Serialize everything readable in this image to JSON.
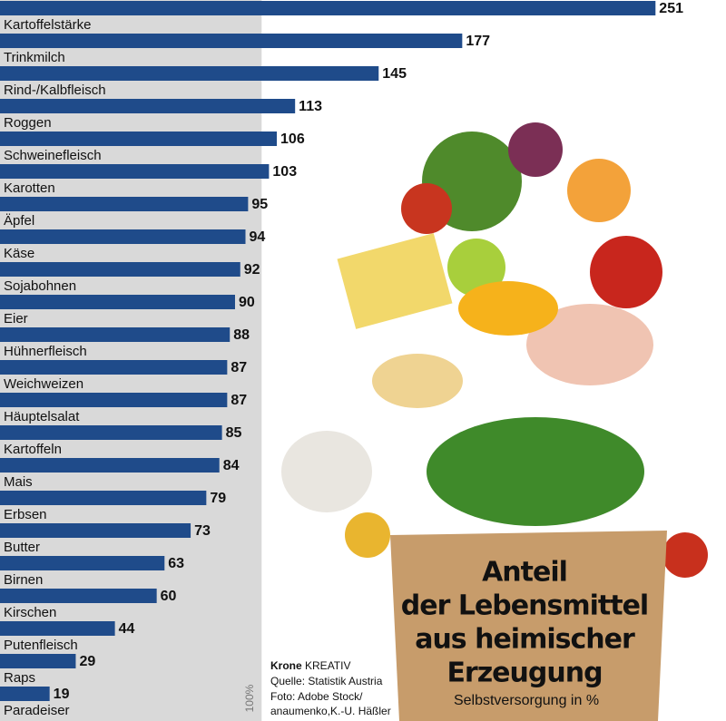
{
  "chart_data": {
    "type": "hbar",
    "title": [
      "Anteil",
      "der Lebensmittel",
      "aus heimischer",
      "Erzeugung"
    ],
    "subtitle": "Selbstversorgung in %",
    "categories": [
      "Kartoffelstärke",
      "Trinkmilch",
      "Rind-/Kalbfleisch",
      "Roggen",
      "Schweinefleisch",
      "Karotten",
      "Äpfel",
      "Käse",
      "Sojabohnen",
      "Eier",
      "Hühnerfleisch",
      "Weichweizen",
      "Häuptelsalat",
      "Kartoffeln",
      "Mais",
      "Erbsen",
      "Butter",
      "Birnen",
      "Kirschen",
      "Putenfleisch",
      "Raps",
      "Paradeiser"
    ],
    "values": [
      251,
      177,
      145,
      113,
      106,
      103,
      95,
      94,
      92,
      90,
      88,
      87,
      87,
      85,
      84,
      79,
      73,
      63,
      60,
      44,
      29,
      19
    ],
    "color": "#1f4b8a",
    "xlim": [
      0,
      278
    ],
    "xticks": [
      {
        "value": 100,
        "label": "100%"
      }
    ],
    "credits": {
      "brand": "Krone",
      "brand_suffix": "KREATIV",
      "source": "Quelle: Statistik Austria",
      "photo": [
        "Foto: Adobe Stock/",
        "anaumenko,K.-U. Häßler"
      ]
    }
  }
}
